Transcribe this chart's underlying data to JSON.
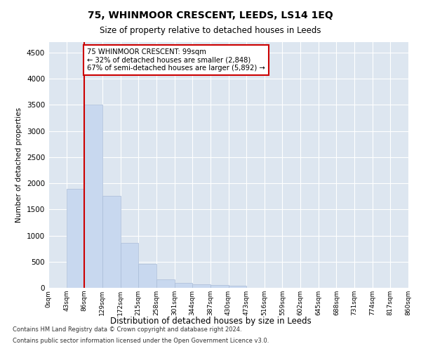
{
  "title": "75, WHINMOOR CRESCENT, LEEDS, LS14 1EQ",
  "subtitle": "Size of property relative to detached houses in Leeds",
  "xlabel": "Distribution of detached houses by size in Leeds",
  "ylabel": "Number of detached properties",
  "bar_color": "#c8d8ef",
  "bar_edge_color": "#aabcd8",
  "vline_color": "#cc0000",
  "vline_x": 2.0,
  "annotation_text": "75 WHINMOOR CRESCENT: 99sqm\n← 32% of detached houses are smaller (2,848)\n67% of semi-detached houses are larger (5,892) →",
  "annotation_box_color": "#ffffff",
  "annotation_box_edge": "#cc0000",
  "footnote1": "Contains HM Land Registry data © Crown copyright and database right 2024.",
  "footnote2": "Contains public sector information licensed under the Open Government Licence v3.0.",
  "bin_labels": [
    "0sqm",
    "43sqm",
    "86sqm",
    "129sqm",
    "172sqm",
    "215sqm",
    "258sqm",
    "301sqm",
    "344sqm",
    "387sqm",
    "430sqm",
    "473sqm",
    "516sqm",
    "559sqm",
    "602sqm",
    "645sqm",
    "688sqm",
    "731sqm",
    "774sqm",
    "817sqm",
    "860sqm"
  ],
  "bar_values": [
    5,
    1900,
    3500,
    1760,
    860,
    450,
    155,
    90,
    65,
    55,
    45,
    0,
    0,
    0,
    0,
    0,
    0,
    0,
    0,
    0
  ],
  "ylim": [
    0,
    4700
  ],
  "yticks": [
    0,
    500,
    1000,
    1500,
    2000,
    2500,
    3000,
    3500,
    4000,
    4500
  ],
  "figsize": [
    6.0,
    5.0
  ],
  "dpi": 100
}
